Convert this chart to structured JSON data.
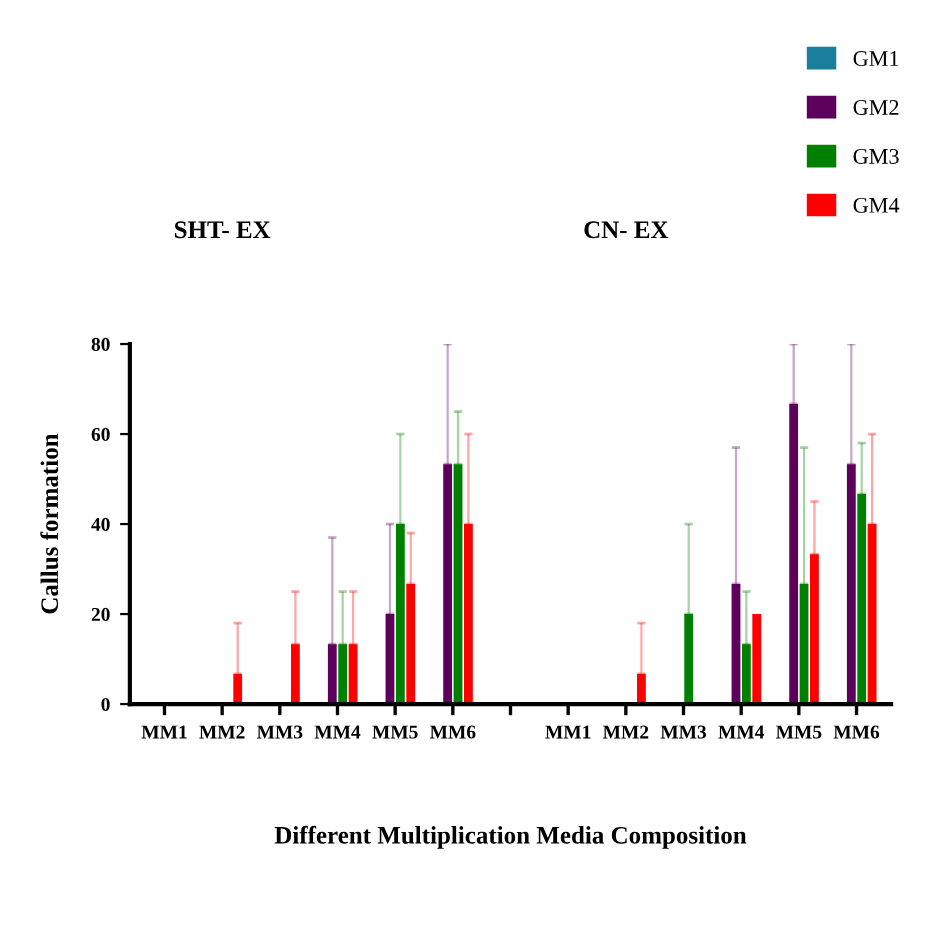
{
  "chart_data": {
    "type": "bar",
    "categories": [
      "MM1",
      "MM2",
      "MM3",
      "MM4",
      "MM5",
      "MM6",
      null,
      "MM1",
      "MM2",
      "MM3",
      "MM4",
      "MM5",
      "MM6"
    ],
    "series": [
      {
        "name": "GM1",
        "color": "#1a7f9a",
        "values": [
          0,
          0,
          0,
          0,
          0,
          0,
          null,
          0,
          0,
          0,
          0,
          0,
          0
        ]
      },
      {
        "name": "GM2",
        "color": "#5c005c",
        "values": [
          0,
          0,
          0,
          13.3,
          20,
          53.3,
          null,
          0,
          0,
          0,
          26.7,
          66.7,
          53.3
        ],
        "errors": [
          null,
          null,
          null,
          [
            13.3,
            37
          ],
          [
            20,
            40
          ],
          [
            53.3,
            80
          ],
          null,
          null,
          null,
          null,
          [
            26.7,
            57
          ],
          [
            66.7,
            80
          ],
          [
            53.3,
            80
          ]
        ]
      },
      {
        "name": "GM3",
        "color": "#008000",
        "values": [
          0,
          0,
          0,
          13.3,
          40,
          53.3,
          null,
          0,
          0,
          20,
          13.3,
          26.7,
          46.7
        ],
        "errors": [
          null,
          null,
          null,
          [
            13.3,
            25
          ],
          [
            40,
            60
          ],
          [
            53.3,
            65
          ],
          null,
          null,
          null,
          [
            20,
            40
          ],
          [
            13.3,
            25
          ],
          [
            26.7,
            57
          ],
          [
            46.7,
            58
          ]
        ]
      },
      {
        "name": "GM4",
        "color": "#ff0000",
        "values": [
          0,
          6.7,
          13.3,
          13.3,
          26.7,
          40,
          null,
          0,
          6.7,
          0,
          20,
          33.3,
          40
        ],
        "errors": [
          null,
          [
            6.7,
            18
          ],
          [
            13.3,
            25
          ],
          [
            13.3,
            25
          ],
          [
            26.7,
            38
          ],
          [
            40,
            60
          ],
          null,
          null,
          [
            6.7,
            18
          ],
          null,
          null,
          [
            33.3,
            45
          ],
          [
            40,
            60
          ]
        ]
      }
    ],
    "ylim": [
      0,
      80
    ],
    "yticks": [
      0,
      20,
      40,
      60,
      80
    ],
    "ylabel": "Callus formation",
    "xlabel": "Different Multiplication Media Composition",
    "annotations": [
      "SHT- EX",
      "CN- EX"
    ],
    "legend": "top right",
    "grid": false
  }
}
